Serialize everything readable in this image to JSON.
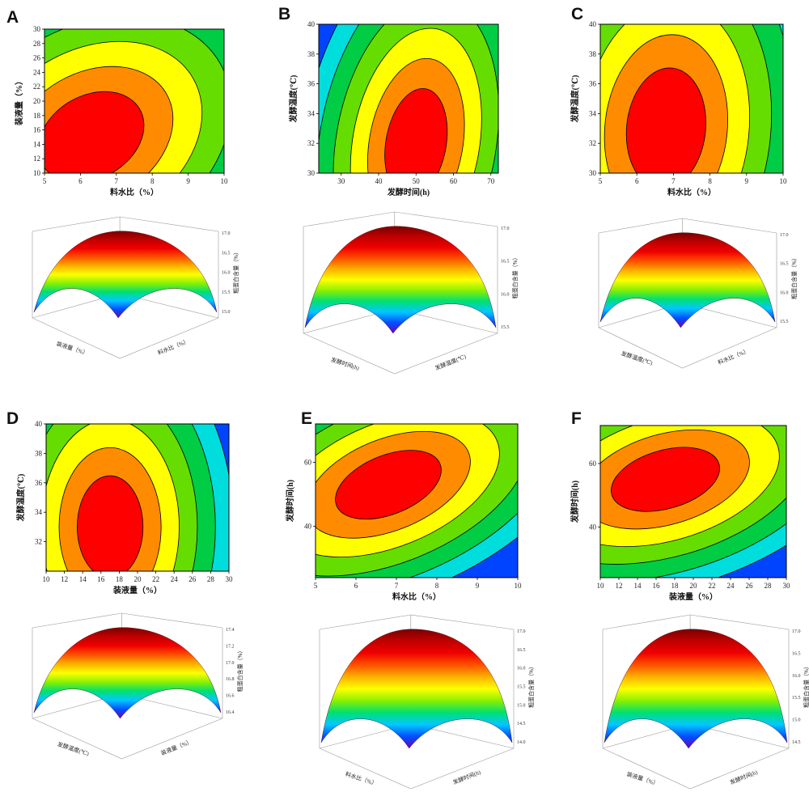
{
  "chart_data": [
    {
      "panel": "A",
      "type": "contour",
      "xlabel": "料水比（%）",
      "ylabel": "装液量（%）",
      "xlim": [
        5,
        10
      ],
      "ylim": [
        10,
        30
      ],
      "xticks": [
        5,
        6,
        7,
        8,
        9,
        10
      ],
      "yticks": [
        10,
        12,
        14,
        16,
        18,
        20,
        22,
        24,
        26,
        28,
        30
      ],
      "optimum": {
        "x": 6.3,
        "y": 15
      },
      "colors": [
        "#ff0000",
        "#ff8c00",
        "#ffff00",
        "#66dd00",
        "#00cc44",
        "#00dddd",
        "#0044ff"
      ]
    },
    {
      "panel": "B",
      "type": "contour",
      "xlabel": "发酵时间(h)",
      "ylabel": "发酵温度(℃)",
      "xlim": [
        24,
        72
      ],
      "ylim": [
        30,
        40
      ],
      "xticks": [
        30,
        40,
        50,
        60,
        70
      ],
      "yticks": [
        30,
        32,
        34,
        36,
        38,
        40
      ],
      "optimum": {
        "x": 50,
        "y": 32
      },
      "colors": [
        "#ff0000",
        "#ff8c00",
        "#ffff00",
        "#66dd00",
        "#00cc44",
        "#00dddd",
        "#0044ff"
      ]
    },
    {
      "panel": "C",
      "type": "contour",
      "xlabel": "料水比（%）",
      "ylabel": "发酵温度(℃)",
      "xlim": [
        5,
        10
      ],
      "ylim": [
        30,
        40
      ],
      "xticks": [
        5,
        6,
        7,
        8,
        9,
        10
      ],
      "yticks": [
        30,
        32,
        34,
        36,
        38,
        40
      ],
      "optimum": {
        "x": 6.8,
        "y": 33
      },
      "colors": [
        "#ff0000",
        "#ff8c00",
        "#ffff00",
        "#66dd00",
        "#00cc44",
        "#00dddd",
        "#0044ff"
      ]
    },
    {
      "panel": "D",
      "type": "contour",
      "xlabel": "装液量（%）",
      "ylabel": "发酵温度(℃)",
      "xlim": [
        10,
        30
      ],
      "ylim": [
        30,
        40
      ],
      "xticks": [
        10,
        12,
        14,
        16,
        18,
        20,
        22,
        24,
        26,
        28,
        30
      ],
      "yticks": [
        32,
        34,
        36,
        38,
        40
      ],
      "optimum": {
        "x": 17,
        "y": 33
      },
      "colors": [
        "#ff0000",
        "#ff8c00",
        "#ffff00",
        "#66dd00",
        "#00cc44",
        "#00dddd",
        "#0044ff"
      ]
    },
    {
      "panel": "E",
      "type": "contour",
      "xlabel": "料水比（%）",
      "ylabel": "发酵时间(h)",
      "xlim": [
        5,
        10
      ],
      "ylim": [
        24,
        72
      ],
      "xticks": [
        5,
        6,
        7,
        8,
        9,
        10
      ],
      "yticks": [
        40,
        60
      ],
      "optimum": {
        "x": 6.8,
        "y": 53
      },
      "colors": [
        "#ff0000",
        "#ff8c00",
        "#ffff00",
        "#66dd00",
        "#00cc44",
        "#00dddd",
        "#0044ff"
      ]
    },
    {
      "panel": "F",
      "type": "contour",
      "xlabel": "装液量（%）",
      "ylabel": "发酵时间(h)",
      "xlim": [
        10,
        30
      ],
      "ylim": [
        24,
        72
      ],
      "xticks": [
        10,
        12,
        14,
        16,
        18,
        20,
        22,
        24,
        26,
        28,
        30
      ],
      "yticks": [
        40,
        60
      ],
      "optimum": {
        "x": 17,
        "y": 55
      },
      "colors": [
        "#ff0000",
        "#ff8c00",
        "#ffff00",
        "#66dd00",
        "#00cc44",
        "#00dddd",
        "#0044ff"
      ]
    }
  ],
  "surfaces": [
    {
      "panel": "A",
      "zlabel": "粗蛋白含量（%）",
      "xlabel": "装液量（%）",
      "ylabel": "料水比（%）",
      "zticks": [
        "15.0",
        "15.5",
        "16.0",
        "16.5",
        "17.0"
      ]
    },
    {
      "panel": "B",
      "zlabel": "粗蛋白含量（%）",
      "xlabel": "发酵时间(h)",
      "ylabel": "发酵温度(℃)",
      "zticks": [
        "15.5",
        "16.0",
        "16.5",
        "17.0"
      ]
    },
    {
      "panel": "C",
      "zlabel": "粗蛋白含量（%）",
      "xlabel": "发酵温度(℃)",
      "ylabel": "料水比（%）",
      "zticks": [
        "15.5",
        "16.0",
        "16.5",
        "17.0"
      ]
    },
    {
      "panel": "D",
      "zlabel": "粗蛋白含量（%）",
      "xlabel": "发酵温度(℃)",
      "ylabel": "装液量（%）",
      "zticks": [
        "16.4",
        "16.6",
        "16.8",
        "17.0",
        "17.2",
        "17.4"
      ]
    },
    {
      "panel": "E",
      "zlabel": "粗蛋白含量（%）",
      "xlabel": "料水比（%）",
      "ylabel": "发酵时间(h)",
      "zticks": [
        "14.0",
        "14.5",
        "15.0",
        "15.5",
        "16.0",
        "16.5",
        "17.0"
      ]
    },
    {
      "panel": "F",
      "zlabel": "粗蛋白含量（%）",
      "xlabel": "装液量（%）",
      "ylabel": "发酵时间(h)",
      "zticks": [
        "14.5",
        "15.0",
        "15.5",
        "16.0",
        "16.5",
        "17.0"
      ]
    }
  ]
}
